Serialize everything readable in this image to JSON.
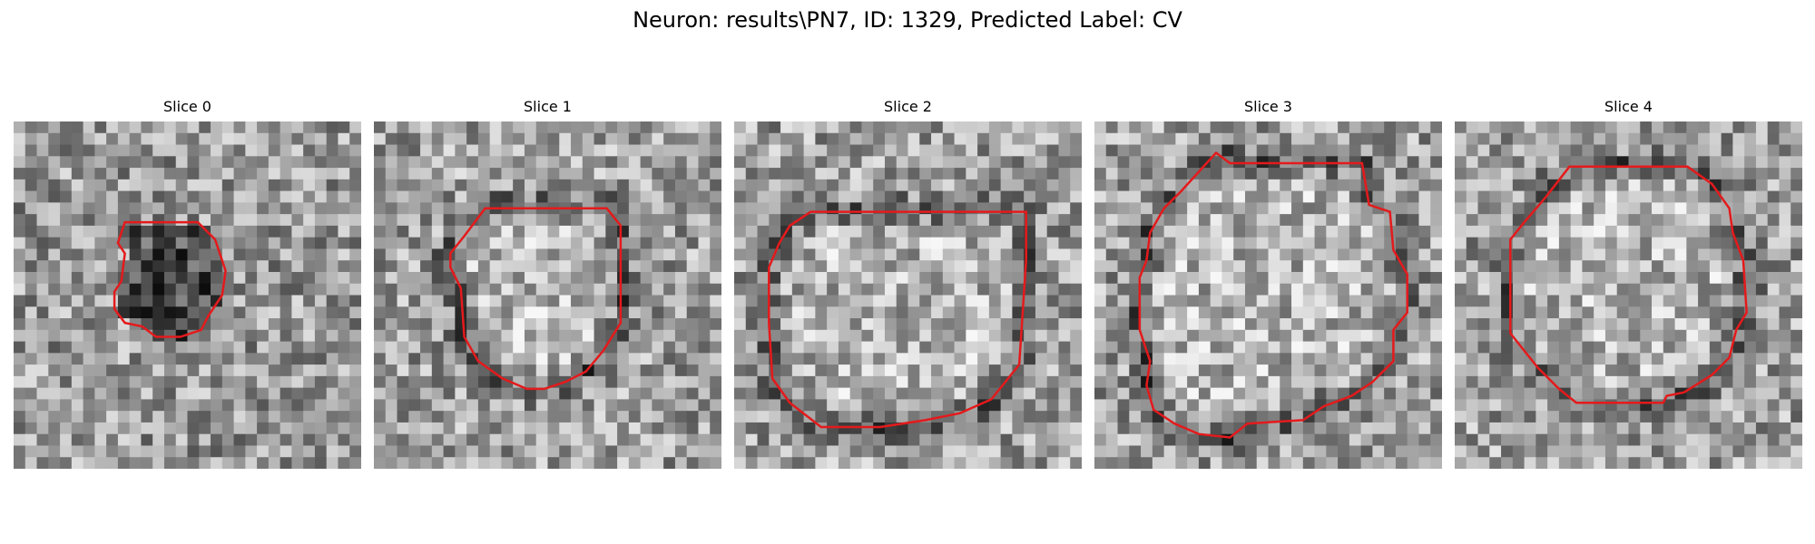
{
  "figure": {
    "title": "Neuron: results\\PN7, ID: 1329, Predicted Label: CV",
    "contour_color": "#e41a1c"
  },
  "panels": [
    {
      "title": "Slice 0",
      "seed": 11,
      "contour": [
        [
          0.32,
          0.29
        ],
        [
          0.53,
          0.29
        ],
        [
          0.58,
          0.34
        ],
        [
          0.61,
          0.43
        ],
        [
          0.6,
          0.5
        ],
        [
          0.56,
          0.56
        ],
        [
          0.54,
          0.6
        ],
        [
          0.48,
          0.62
        ],
        [
          0.41,
          0.62
        ],
        [
          0.37,
          0.59
        ],
        [
          0.32,
          0.58
        ],
        [
          0.29,
          0.54
        ],
        [
          0.29,
          0.49
        ],
        [
          0.31,
          0.46
        ],
        [
          0.32,
          0.38
        ],
        [
          0.3,
          0.35
        ]
      ],
      "dark_ring": false
    },
    {
      "title": "Slice 1",
      "seed": 23,
      "contour": [
        [
          0.32,
          0.25
        ],
        [
          0.67,
          0.25
        ],
        [
          0.71,
          0.3
        ],
        [
          0.71,
          0.58
        ],
        [
          0.66,
          0.66
        ],
        [
          0.61,
          0.72
        ],
        [
          0.55,
          0.75
        ],
        [
          0.49,
          0.77
        ],
        [
          0.44,
          0.77
        ],
        [
          0.37,
          0.74
        ],
        [
          0.3,
          0.69
        ],
        [
          0.26,
          0.62
        ],
        [
          0.25,
          0.48
        ],
        [
          0.22,
          0.42
        ],
        [
          0.22,
          0.38
        ],
        [
          0.26,
          0.33
        ]
      ],
      "dark_ring": true
    },
    {
      "title": "Slice 2",
      "seed": 37,
      "contour": [
        [
          0.22,
          0.26
        ],
        [
          0.84,
          0.26
        ],
        [
          0.84,
          0.4
        ],
        [
          0.82,
          0.7
        ],
        [
          0.74,
          0.8
        ],
        [
          0.65,
          0.84
        ],
        [
          0.55,
          0.86
        ],
        [
          0.42,
          0.88
        ],
        [
          0.25,
          0.88
        ],
        [
          0.16,
          0.81
        ],
        [
          0.11,
          0.74
        ],
        [
          0.1,
          0.58
        ],
        [
          0.1,
          0.42
        ],
        [
          0.13,
          0.35
        ],
        [
          0.16,
          0.3
        ]
      ],
      "dark_ring": true
    },
    {
      "title": "Slice 3",
      "seed": 41,
      "contour": [
        [
          0.35,
          0.09
        ],
        [
          0.39,
          0.12
        ],
        [
          0.77,
          0.12
        ],
        [
          0.79,
          0.24
        ],
        [
          0.85,
          0.26
        ],
        [
          0.86,
          0.37
        ],
        [
          0.9,
          0.44
        ],
        [
          0.9,
          0.55
        ],
        [
          0.86,
          0.6
        ],
        [
          0.86,
          0.69
        ],
        [
          0.8,
          0.75
        ],
        [
          0.74,
          0.79
        ],
        [
          0.66,
          0.82
        ],
        [
          0.6,
          0.86
        ],
        [
          0.44,
          0.87
        ],
        [
          0.39,
          0.91
        ],
        [
          0.3,
          0.9
        ],
        [
          0.23,
          0.87
        ],
        [
          0.17,
          0.83
        ],
        [
          0.15,
          0.76
        ],
        [
          0.16,
          0.69
        ],
        [
          0.13,
          0.6
        ],
        [
          0.13,
          0.45
        ],
        [
          0.15,
          0.4
        ],
        [
          0.16,
          0.32
        ],
        [
          0.2,
          0.25
        ],
        [
          0.25,
          0.2
        ]
      ],
      "dark_ring": true
    },
    {
      "title": "Slice 4",
      "seed": 53,
      "contour": [
        [
          0.33,
          0.13
        ],
        [
          0.67,
          0.13
        ],
        [
          0.74,
          0.18
        ],
        [
          0.79,
          0.25
        ],
        [
          0.8,
          0.32
        ],
        [
          0.83,
          0.4
        ],
        [
          0.84,
          0.55
        ],
        [
          0.81,
          0.6
        ],
        [
          0.79,
          0.68
        ],
        [
          0.74,
          0.73
        ],
        [
          0.66,
          0.78
        ],
        [
          0.61,
          0.79
        ],
        [
          0.6,
          0.81
        ],
        [
          0.35,
          0.81
        ],
        [
          0.3,
          0.77
        ],
        [
          0.24,
          0.71
        ],
        [
          0.16,
          0.61
        ],
        [
          0.16,
          0.34
        ],
        [
          0.2,
          0.29
        ],
        [
          0.26,
          0.22
        ]
      ],
      "dark_ring": true
    }
  ]
}
